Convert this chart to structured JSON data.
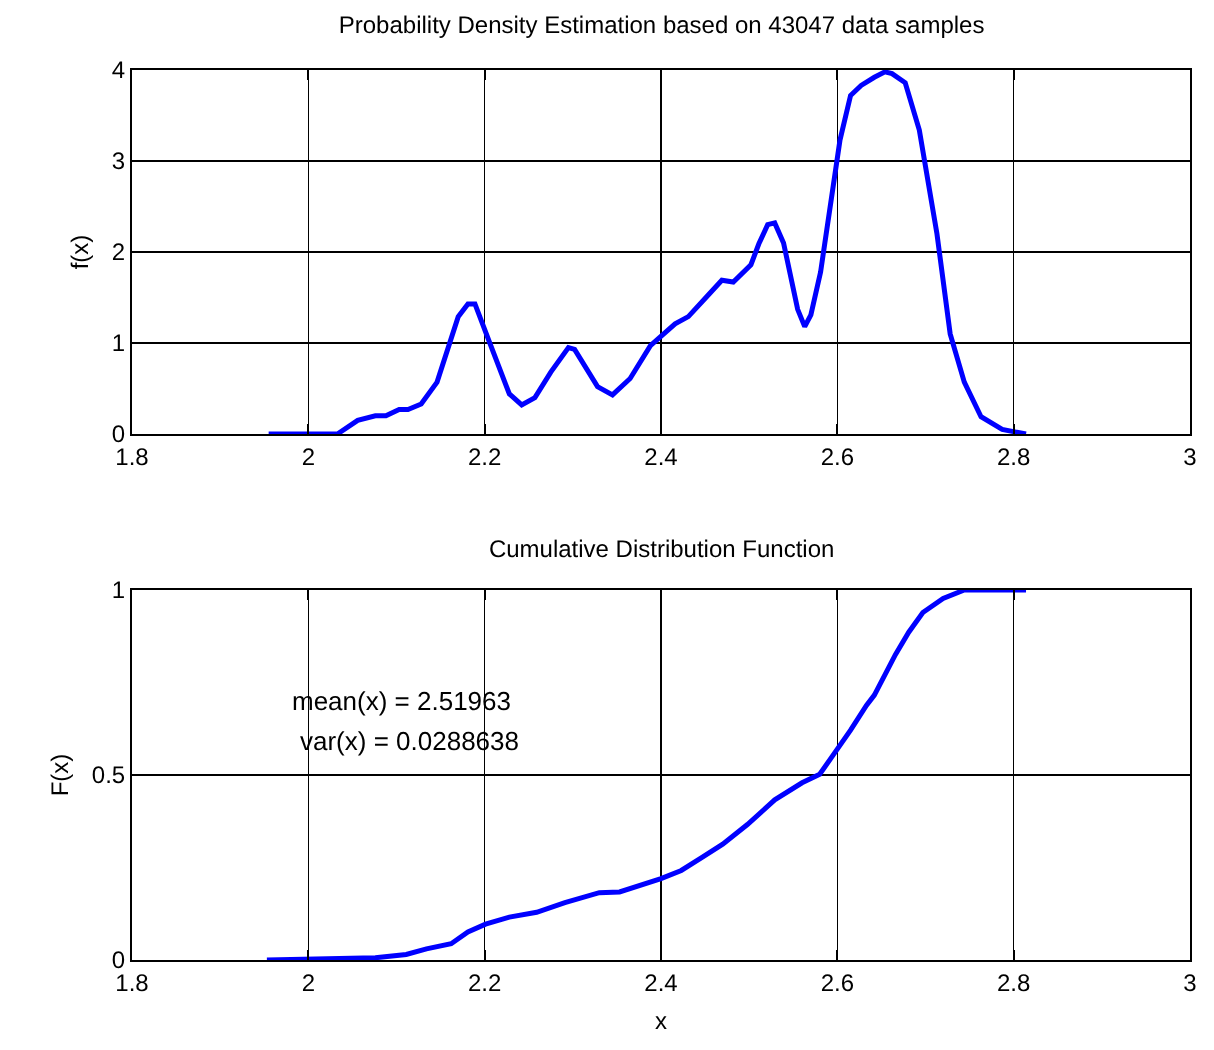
{
  "chart_data": [
    {
      "type": "line",
      "title": "Probability Density Estimation based on 43047 data samples",
      "ylabel": "f(x)",
      "x": [
        1.955,
        2.033,
        2.056,
        2.076,
        2.088,
        2.103,
        2.113,
        2.128,
        2.146,
        2.17,
        2.181,
        2.189,
        2.205,
        2.228,
        2.242,
        2.257,
        2.275,
        2.295,
        2.302,
        2.328,
        2.345,
        2.365,
        2.388,
        2.416,
        2.431,
        2.451,
        2.469,
        2.482,
        2.502,
        2.511,
        2.521,
        2.529,
        2.539,
        2.555,
        2.563,
        2.57,
        2.581,
        2.603,
        2.615,
        2.627,
        2.642,
        2.654,
        2.662,
        2.677,
        2.693,
        2.713,
        2.728,
        2.744,
        2.763,
        2.787,
        2.814
      ],
      "series": [
        {
          "color": "#0000ff",
          "values": [
            0,
            0,
            0.15,
            0.2,
            0.2,
            0.27,
            0.27,
            0.33,
            0.57,
            1.29,
            1.43,
            1.43,
            1.02,
            0.44,
            0.32,
            0.4,
            0.68,
            0.95,
            0.93,
            0.52,
            0.43,
            0.61,
            0.97,
            1.21,
            1.29,
            1.5,
            1.69,
            1.67,
            1.86,
            2.09,
            2.3,
            2.32,
            2.1,
            1.37,
            1.18,
            1.31,
            1.78,
            3.23,
            3.72,
            3.83,
            3.92,
            3.98,
            3.96,
            3.86,
            3.34,
            2.2,
            1.1,
            0.57,
            0.19,
            0.05,
            0
          ]
        }
      ],
      "xlim": [
        1.8,
        3
      ],
      "xticks": [
        1.8,
        2,
        2.2,
        2.4,
        2.6,
        2.8,
        3
      ],
      "ylim": [
        0,
        4
      ],
      "yticks": [
        0,
        1,
        2,
        3,
        4
      ],
      "grid": true
    },
    {
      "type": "line",
      "title": "Cumulative Distribution Function",
      "xlabel": "x",
      "ylabel": "F(x)",
      "annotations": [
        "mean(x) = 2.51963",
        "var(x) = 0.0288638"
      ],
      "x": [
        1.953,
        2.076,
        2.111,
        2.134,
        2.162,
        2.181,
        2.201,
        2.228,
        2.259,
        2.291,
        2.33,
        2.353,
        2.4,
        2.423,
        2.447,
        2.47,
        2.498,
        2.529,
        2.56,
        2.58,
        2.595,
        2.615,
        2.633,
        2.642,
        2.666,
        2.681,
        2.697,
        2.72,
        2.744,
        2.814
      ],
      "series": [
        {
          "color": "#0000ff",
          "values": [
            0,
            0.006,
            0.015,
            0.03,
            0.044,
            0.076,
            0.097,
            0.116,
            0.129,
            0.155,
            0.182,
            0.184,
            0.22,
            0.242,
            0.278,
            0.313,
            0.366,
            0.433,
            0.479,
            0.502,
            0.553,
            0.621,
            0.688,
            0.716,
            0.826,
            0.886,
            0.939,
            0.977,
            1,
            1
          ]
        }
      ],
      "xlim": [
        1.8,
        3
      ],
      "xticks": [
        1.8,
        2,
        2.2,
        2.4,
        2.6,
        2.8,
        3
      ],
      "ylim": [
        0,
        1
      ],
      "yticks": [
        0,
        0.5,
        1
      ],
      "grid": true
    }
  ]
}
